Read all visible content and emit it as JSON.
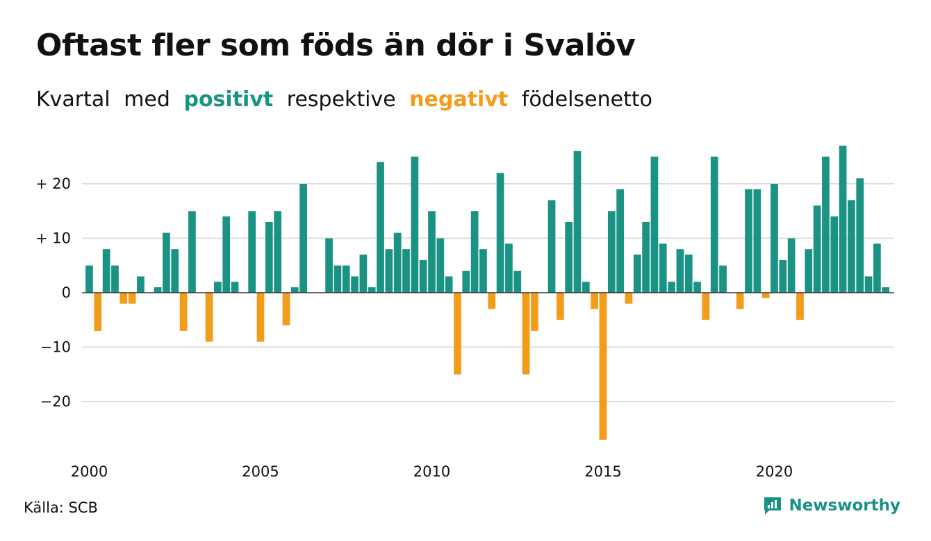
{
  "title": "Oftast fler som föds än dör i Svalöv",
  "subtitle": {
    "w1": "Kvartal",
    "w2": "med",
    "positive": "positivt",
    "w3": "respektive",
    "negative": "negativt",
    "w4": "födelsenetto"
  },
  "source": "Källa: SCB",
  "brand": "Newsworthy",
  "colors": {
    "positive": "#1a9384",
    "negative": "#f39c1a",
    "grid": "#dddddd",
    "axis": "#333333"
  },
  "chart_data": {
    "type": "bar",
    "x_start": 2000,
    "step": 0.25,
    "values": [
      5,
      -7,
      8,
      5,
      -2,
      -2,
      3,
      0,
      1,
      11,
      8,
      -7,
      15,
      0,
      -9,
      2,
      14,
      2,
      0,
      15,
      -9,
      13,
      15,
      -6,
      1,
      20,
      0,
      0,
      10,
      5,
      5,
      3,
      7,
      1,
      24,
      8,
      11,
      8,
      25,
      6,
      15,
      10,
      3,
      -15,
      4,
      15,
      8,
      -3,
      22,
      9,
      4,
      -15,
      -7,
      0,
      17,
      -5,
      13,
      26,
      2,
      -3,
      -27,
      15,
      19,
      -2,
      7,
      13,
      25,
      9,
      2,
      8,
      7,
      2,
      -5,
      25,
      5,
      0,
      -3,
      19,
      19,
      -1,
      20,
      6,
      10,
      -5,
      8,
      16,
      25,
      14,
      27,
      17,
      21,
      3,
      9,
      1
    ],
    "xlim": [
      2000,
      2023.5
    ],
    "ylim": [
      -27,
      27
    ],
    "xticks": [
      2000,
      2005,
      2010,
      2015,
      2020
    ],
    "xtick_labels": [
      "2000",
      "2005",
      "2010",
      "2015",
      "2020"
    ],
    "yticks": [
      20,
      10,
      0,
      -10,
      -20
    ],
    "ytick_labels": [
      "+ 20",
      "+ 10",
      "0",
      "−10",
      "−20"
    ],
    "grid": true
  }
}
